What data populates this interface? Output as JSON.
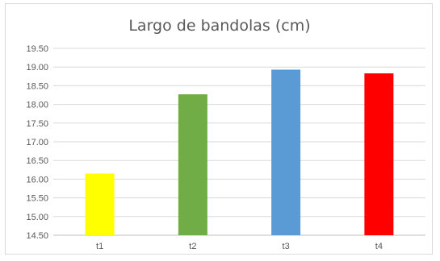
{
  "chart_data": {
    "type": "bar",
    "title": "Largo de bandolas (cm)",
    "xlabel": "",
    "ylabel": "",
    "categories": [
      "t1",
      "t2",
      "t3",
      "t4"
    ],
    "values": [
      16.15,
      18.27,
      18.93,
      18.83
    ],
    "colors": [
      "#ffff00",
      "#70ad47",
      "#5b9bd5",
      "#ff0000"
    ],
    "ylim": [
      14.5,
      19.5
    ],
    "yticks": [
      "14.50",
      "15.00",
      "15.50",
      "16.00",
      "16.50",
      "17.00",
      "17.50",
      "18.00",
      "18.50",
      "19.00",
      "19.50"
    ],
    "grid": true,
    "legend": "none"
  }
}
